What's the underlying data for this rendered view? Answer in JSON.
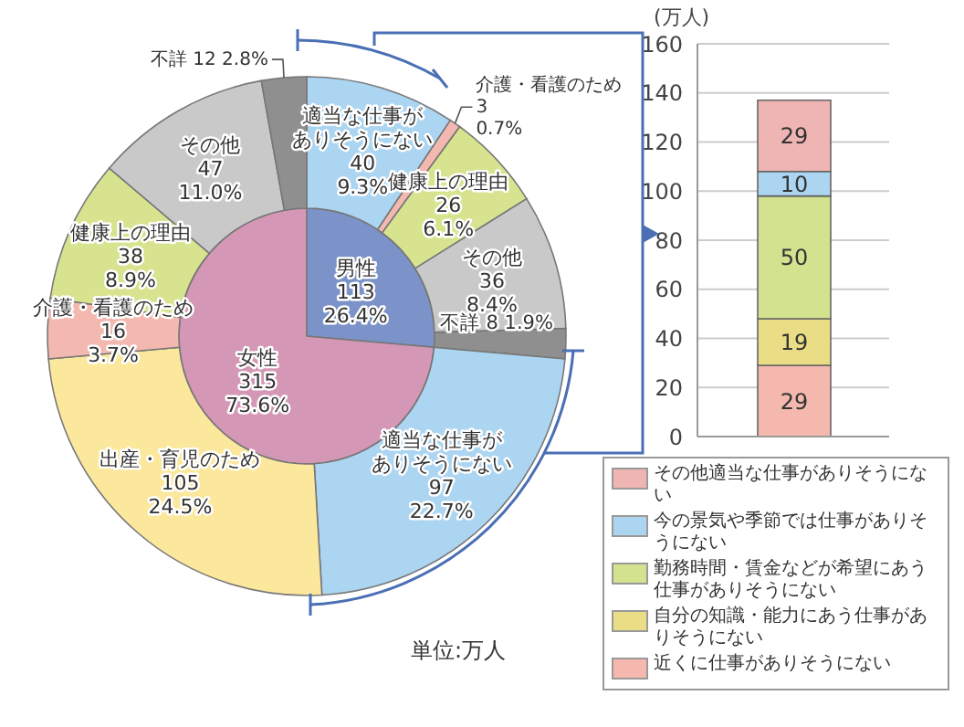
{
  "chart_data": [
    {
      "type": "pie",
      "categories": [
        "男性",
        "女性"
      ],
      "values": [
        113,
        315
      ],
      "colors": [
        "#7b93c9",
        "#d497b5"
      ],
      "value_labels": [
        "113\n26.4%",
        "315\n73.6%"
      ]
    },
    {
      "type": "donut",
      "categories": [
        "適当な仕事がありそうにない",
        "介護・看護のため",
        "健康上の理由",
        "その他",
        "不詳",
        "適当な仕事がありそうにない",
        "出産・育児のため",
        "介護・看護のため",
        "健康上の理由",
        "その他",
        "不詳"
      ],
      "values": [
        40,
        3,
        26,
        36,
        8,
        97,
        105,
        16,
        38,
        47,
        12
      ],
      "colors": [
        "#acd5f1",
        "#f3b9b0",
        "#d8e38f",
        "#c9c9c9",
        "#8f8f8f",
        "#acd5f1",
        "#fbe89d",
        "#f3b9b0",
        "#d8e38f",
        "#c9c9c9",
        "#8f8f8f"
      ],
      "value_labels": [
        "40\n9.3%",
        "3\n0.7%",
        "26\n6.1%",
        "36\n8.4%",
        "8 1.9%",
        "97\n22.7%",
        "105\n24.5%",
        "16\n3.7%",
        "38\n8.9%",
        "47\n11.0%",
        "12\n2.8%"
      ],
      "annotations": [
        "単位:万人"
      ]
    },
    {
      "type": "bar",
      "stacked": true,
      "categories": [
        null
      ],
      "series": [
        {
          "name": "近くに仕事がありそうにない",
          "color": "#f5b8ae",
          "values": [
            29
          ]
        },
        {
          "name": "自分の知識・能力にあう仕事がありそうにない",
          "color": "#e9de86",
          "values": [
            19
          ]
        },
        {
          "name": "勤務時間・賃金などが希望にあう仕事がありそうにない",
          "color": "#d2e28e",
          "values": [
            50
          ]
        },
        {
          "name": "今の景気や季節では仕事がありそうにない",
          "color": "#acd5f1",
          "values": [
            10
          ]
        },
        {
          "name": "その他適当な仕事がありそうにない",
          "color": "#eeb5b3",
          "values": [
            29
          ]
        }
      ],
      "ylim": [
        0,
        160
      ],
      "yticks": [
        0,
        20,
        40,
        60,
        80,
        100,
        120,
        140,
        160
      ],
      "ylabel": "(万人)",
      "grid": "y",
      "legend": "bottom",
      "data_labels": true
    }
  ]
}
